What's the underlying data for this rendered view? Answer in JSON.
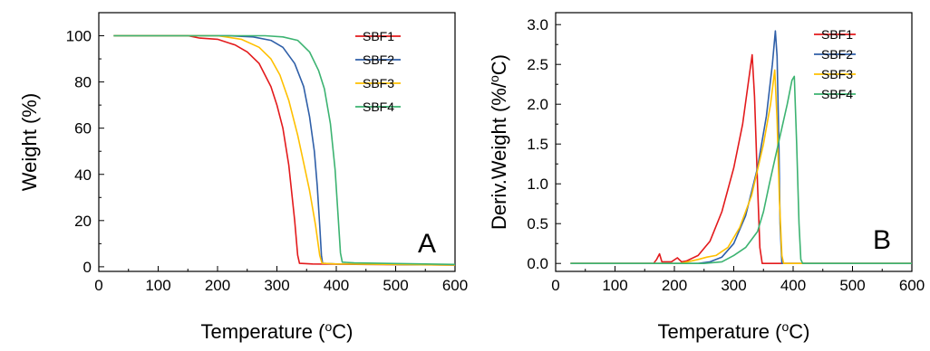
{
  "colors": {
    "SBF1": "#e31a1c",
    "SBF2": "#2f5fa8",
    "SBF3": "#ffc000",
    "SBF4": "#3cb371"
  },
  "chart_data": [
    {
      "type": "line",
      "panel": "A",
      "xlabel": "Temperature (°C)",
      "ylabel": "Weight (%)",
      "xlim": [
        0,
        600
      ],
      "ylim": [
        -2,
        110
      ],
      "xticks": [
        "0",
        "100",
        "200",
        "300",
        "400",
        "500",
        "600"
      ],
      "yticks": [
        "0",
        "20",
        "40",
        "60",
        "80",
        "100"
      ],
      "xtick_values": [
        0,
        100,
        200,
        300,
        400,
        500,
        600
      ],
      "ytick_values": [
        0,
        20,
        40,
        60,
        80,
        100
      ],
      "legend_position": "top-right",
      "grid": false,
      "series": [
        {
          "name": "SBF1",
          "color_key": "SBF1",
          "points": [
            [
              25,
              100
            ],
            [
              150,
              100
            ],
            [
              170,
              99
            ],
            [
              200,
              98.5
            ],
            [
              230,
              96
            ],
            [
              250,
              93
            ],
            [
              270,
              88
            ],
            [
              290,
              78
            ],
            [
              300,
              70
            ],
            [
              310,
              60
            ],
            [
              320,
              44
            ],
            [
              330,
              20
            ],
            [
              335,
              5
            ],
            [
              338,
              1.5
            ],
            [
              360,
              1.2
            ],
            [
              450,
              1
            ],
            [
              600,
              0.8
            ]
          ]
        },
        {
          "name": "SBF2",
          "color_key": "SBF2",
          "points": [
            [
              25,
              100
            ],
            [
              220,
              100
            ],
            [
              260,
              99.5
            ],
            [
              290,
              98
            ],
            [
              310,
              95
            ],
            [
              330,
              88
            ],
            [
              345,
              78
            ],
            [
              355,
              65
            ],
            [
              363,
              50
            ],
            [
              368,
              35
            ],
            [
              372,
              18
            ],
            [
              375,
              5
            ],
            [
              377,
              1.5
            ],
            [
              400,
              1.2
            ],
            [
              500,
              1
            ],
            [
              600,
              0.8
            ]
          ]
        },
        {
          "name": "SBF3",
          "color_key": "SBF3",
          "points": [
            [
              25,
              100
            ],
            [
              200,
              100
            ],
            [
              240,
              98.5
            ],
            [
              270,
              95
            ],
            [
              290,
              90
            ],
            [
              305,
              83
            ],
            [
              320,
              72
            ],
            [
              335,
              57
            ],
            [
              345,
              45
            ],
            [
              355,
              33
            ],
            [
              365,
              18
            ],
            [
              372,
              5
            ],
            [
              376,
              1.5
            ],
            [
              400,
              1.2
            ],
            [
              500,
              1
            ],
            [
              600,
              0.8
            ]
          ]
        },
        {
          "name": "SBF4",
          "color_key": "SBF4",
          "points": [
            [
              25,
              100
            ],
            [
              280,
              100
            ],
            [
              310,
              99.5
            ],
            [
              335,
              98
            ],
            [
              355,
              93
            ],
            [
              370,
              85
            ],
            [
              380,
              77
            ],
            [
              390,
              62
            ],
            [
              398,
              42
            ],
            [
              403,
              22
            ],
            [
              407,
              6
            ],
            [
              410,
              2
            ],
            [
              430,
              1.7
            ],
            [
              500,
              1.4
            ],
            [
              600,
              1
            ]
          ]
        }
      ]
    },
    {
      "type": "line",
      "panel": "B",
      "xlabel": "Temperature (°C)",
      "ylabel": "Deriv.Weight (%/°C)",
      "xlim": [
        0,
        600
      ],
      "ylim": [
        -0.1,
        3.15
      ],
      "xticks": [
        "0",
        "100",
        "200",
        "300",
        "400",
        "500",
        "600"
      ],
      "yticks": [
        "0.0",
        "0.5",
        "1.0",
        "1.5",
        "2.0",
        "2.5",
        "3.0"
      ],
      "xtick_values": [
        0,
        100,
        200,
        300,
        400,
        500,
        600
      ],
      "ytick_values": [
        0,
        0.5,
        1.0,
        1.5,
        2.0,
        2.5,
        3.0
      ],
      "legend_position": "top-right",
      "grid": false,
      "series": [
        {
          "name": "SBF1",
          "color_key": "SBF1",
          "points": [
            [
              25,
              0
            ],
            [
              165,
              0
            ],
            [
              170,
              0.05
            ],
            [
              175,
              0.12
            ],
            [
              179,
              0.02
            ],
            [
              195,
              0.02
            ],
            [
              205,
              0.07
            ],
            [
              212,
              0.02
            ],
            [
              220,
              0.03
            ],
            [
              240,
              0.1
            ],
            [
              260,
              0.28
            ],
            [
              280,
              0.65
            ],
            [
              300,
              1.2
            ],
            [
              315,
              1.75
            ],
            [
              325,
              2.3
            ],
            [
              331,
              2.62
            ],
            [
              335,
              2.1
            ],
            [
              340,
              1.0
            ],
            [
              344,
              0.2
            ],
            [
              348,
              0
            ],
            [
              600,
              0
            ]
          ]
        },
        {
          "name": "SBF2",
          "color_key": "SBF2",
          "points": [
            [
              25,
              0
            ],
            [
              240,
              0
            ],
            [
              260,
              0.02
            ],
            [
              280,
              0.08
            ],
            [
              300,
              0.25
            ],
            [
              320,
              0.6
            ],
            [
              340,
              1.2
            ],
            [
              355,
              1.85
            ],
            [
              365,
              2.5
            ],
            [
              370,
              2.92
            ],
            [
              373,
              2.6
            ],
            [
              376,
              1.5
            ],
            [
              378,
              0.5
            ],
            [
              381,
              0
            ],
            [
              600,
              0
            ]
          ]
        },
        {
          "name": "SBF3",
          "color_key": "SBF3",
          "points": [
            [
              25,
              0
            ],
            [
              210,
              0
            ],
            [
              240,
              0.05
            ],
            [
              255,
              0.08
            ],
            [
              270,
              0.1
            ],
            [
              290,
              0.2
            ],
            [
              310,
              0.45
            ],
            [
              330,
              0.85
            ],
            [
              350,
              1.5
            ],
            [
              362,
              2.0
            ],
            [
              369,
              2.43
            ],
            [
              373,
              1.8
            ],
            [
              377,
              0.8
            ],
            [
              381,
              0.1
            ],
            [
              384,
              0
            ],
            [
              600,
              0
            ]
          ]
        },
        {
          "name": "SBF4",
          "color_key": "SBF4",
          "points": [
            [
              25,
              0
            ],
            [
              250,
              0
            ],
            [
              280,
              0.02
            ],
            [
              300,
              0.1
            ],
            [
              320,
              0.2
            ],
            [
              340,
              0.4
            ],
            [
              350,
              0.65
            ],
            [
              360,
              1.0
            ],
            [
              375,
              1.5
            ],
            [
              390,
              2.0
            ],
            [
              398,
              2.3
            ],
            [
              402,
              2.35
            ],
            [
              406,
              1.5
            ],
            [
              410,
              0.5
            ],
            [
              413,
              0.05
            ],
            [
              416,
              0
            ],
            [
              600,
              0
            ]
          ]
        }
      ]
    }
  ]
}
